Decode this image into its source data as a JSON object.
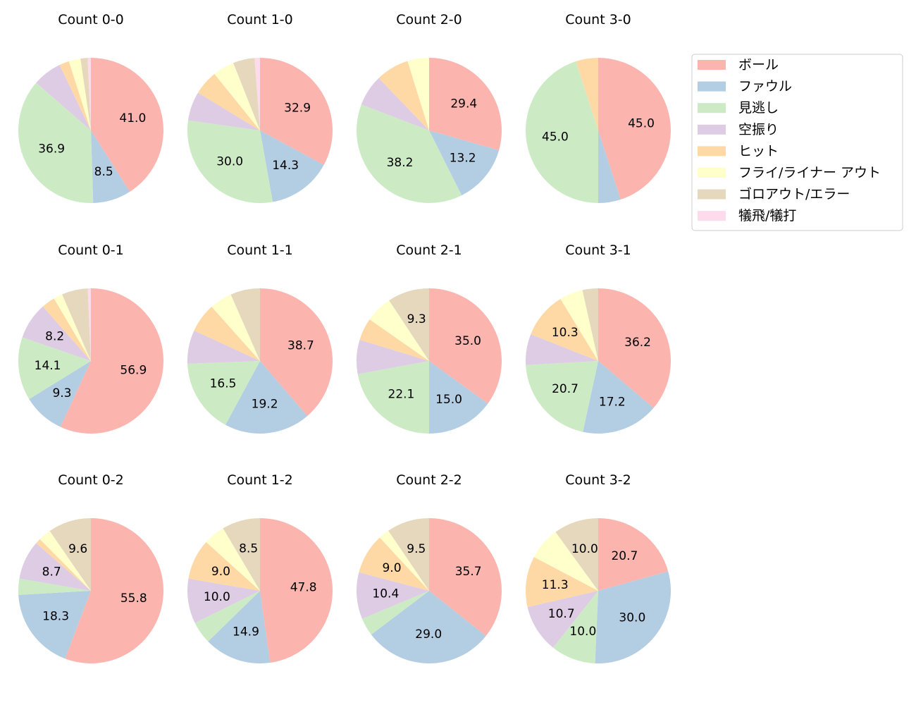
{
  "chart_data": {
    "type": "pie",
    "categories": [
      "ボール",
      "ファウル",
      "見逃し",
      "空振り",
      "ヒット",
      "フライ/ライナー アウト",
      "ゴロアウト/エラー",
      "犠飛/犠打"
    ],
    "colors": [
      "#fbb4ae",
      "#b3cde3",
      "#ccebc5",
      "#decbe4",
      "#fed9a6",
      "#ffffcc",
      "#e5d8bd",
      "#fddaec"
    ],
    "legend_position": "right",
    "pies": [
      {
        "title": "Count 0-0",
        "values": [
          41.0,
          8.5,
          36.9,
          6.5,
          2.2,
          2.6,
          1.6,
          0.7
        ]
      },
      {
        "title": "Count 1-0",
        "values": [
          32.9,
          14.3,
          30.0,
          6.5,
          5.5,
          4.8,
          4.8,
          1.2
        ]
      },
      {
        "title": "Count 2-0",
        "values": [
          29.4,
          13.2,
          38.2,
          7.0,
          7.4,
          4.8,
          0,
          0
        ]
      },
      {
        "title": "Count 3-0",
        "values": [
          45.0,
          5.0,
          45.0,
          0,
          5.0,
          0,
          0,
          0
        ]
      },
      {
        "title": "Count 0-1",
        "values": [
          56.9,
          9.3,
          14.1,
          8.2,
          3.0,
          2.0,
          5.8,
          0.7
        ]
      },
      {
        "title": "Count 1-1",
        "values": [
          38.7,
          19.2,
          16.5,
          7.5,
          6.5,
          5.0,
          6.6,
          0
        ]
      },
      {
        "title": "Count 2-1",
        "values": [
          35.0,
          15.0,
          22.1,
          7.6,
          5.0,
          6.0,
          9.3,
          0
        ]
      },
      {
        "title": "Count 3-1",
        "values": [
          36.2,
          17.2,
          20.7,
          6.9,
          10.3,
          5.2,
          3.5,
          0
        ]
      },
      {
        "title": "Count 0-2",
        "values": [
          55.8,
          18.3,
          3.6,
          8.7,
          1.2,
          2.8,
          9.6,
          0
        ]
      },
      {
        "title": "Count 1-2",
        "values": [
          47.8,
          14.9,
          5.0,
          10.0,
          9.0,
          4.8,
          8.5,
          0
        ]
      },
      {
        "title": "Count 2-2",
        "values": [
          35.7,
          29.0,
          4.0,
          10.4,
          9.0,
          2.4,
          9.5,
          0
        ]
      },
      {
        "title": "Count 3-2",
        "values": [
          20.7,
          30.0,
          10.0,
          10.7,
          11.3,
          7.3,
          10.0,
          0
        ]
      }
    ],
    "label_threshold": 8
  }
}
